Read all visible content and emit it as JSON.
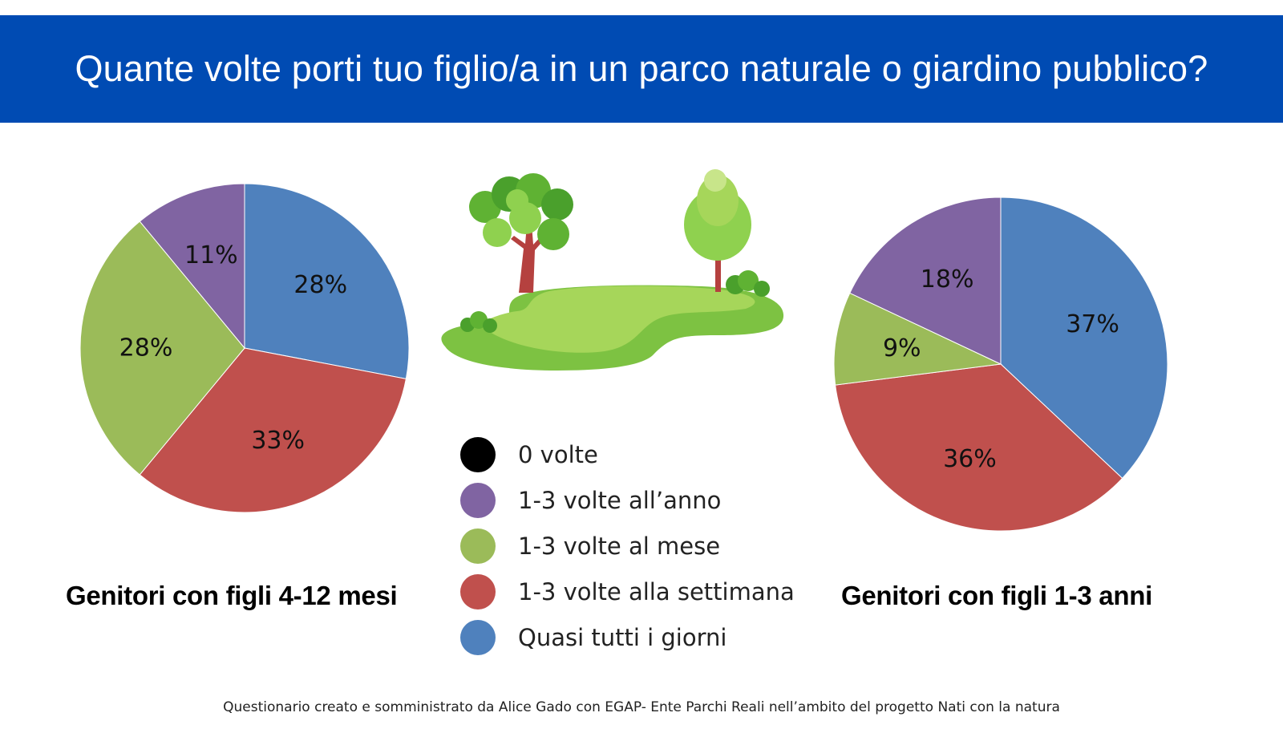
{
  "header": {
    "title": "Quante volte porti tuo figlio/a in un parco naturale o giardino pubblico?",
    "background": "#004bb3"
  },
  "legend": {
    "items": [
      {
        "label": "0 volte",
        "color": "#000000"
      },
      {
        "label": "1-3 volte all’anno",
        "color": "#8064a2"
      },
      {
        "label": "1-3 volte al mese",
        "color": "#9bbb59"
      },
      {
        "label": "1-3 volte alla settimana",
        "color": "#c0504d"
      },
      {
        "label": "Quasi tutti i giorni",
        "color": "#4f81bd"
      }
    ]
  },
  "illustration": {
    "icon": "park-trees-icon"
  },
  "chart_data": [
    {
      "type": "pie",
      "caption": "Genitori con figli 4-12 mesi",
      "slices": [
        {
          "category": "Quasi tutti i giorni",
          "value": 28,
          "label": "28%",
          "color": "#4f81bd"
        },
        {
          "category": "1-3 volte alla settimana",
          "value": 33,
          "label": "33%",
          "color": "#c0504d"
        },
        {
          "category": "1-3 volte al mese",
          "value": 28,
          "label": "28%",
          "color": "#9bbb59"
        },
        {
          "category": "1-3 volte all’anno",
          "value": 11,
          "label": "11%",
          "color": "#8064a2"
        }
      ]
    },
    {
      "type": "pie",
      "caption": "Genitori con figli 1-3 anni",
      "slices": [
        {
          "category": "Quasi tutti i giorni",
          "value": 37,
          "label": "37%",
          "color": "#4f81bd"
        },
        {
          "category": "1-3 volte alla settimana",
          "value": 36,
          "label": "36%",
          "color": "#c0504d"
        },
        {
          "category": "1-3 volte al mese",
          "value": 9,
          "label": "9%",
          "color": "#9bbb59"
        },
        {
          "category": "1-3 volte all’anno",
          "value": 18,
          "label": "18%",
          "color": "#8064a2"
        }
      ]
    }
  ],
  "footer": {
    "text": "Questionario creato e somministrato da Alice Gado con EGAP- Ente Parchi Reali nell’ambito del progetto Nati con la natura"
  }
}
